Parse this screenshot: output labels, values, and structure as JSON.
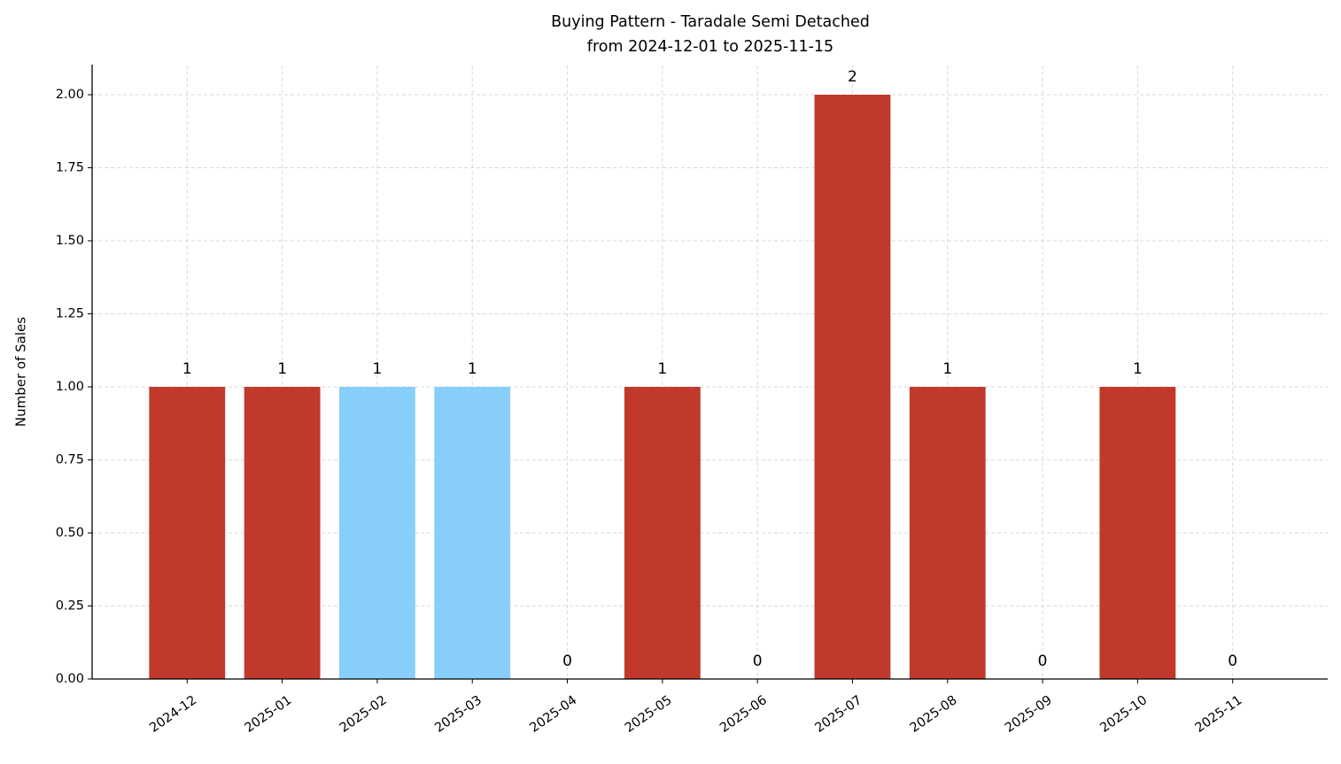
{
  "chart_data": {
    "type": "bar",
    "title": "Buying Pattern - Taradale Semi Detached",
    "subtitle": "from 2024-12-01 to 2025-11-15",
    "y_label": "Number of Sales",
    "categories": [
      "2024-12",
      "2025-01",
      "2025-02",
      "2025-03",
      "2025-04",
      "2025-05",
      "2025-06",
      "2025-07",
      "2025-08",
      "2025-09",
      "2025-10",
      "2025-11"
    ],
    "values": [
      1,
      1,
      1,
      1,
      0,
      1,
      0,
      2,
      1,
      0,
      1,
      0
    ],
    "colors": [
      "#c0392b",
      "#c0392b",
      "#87cefa",
      "#87cefa",
      "#c0392b",
      "#c0392b",
      "#c0392b",
      "#c0392b",
      "#c0392b",
      "#c0392b",
      "#c0392b",
      "#c0392b"
    ],
    "ylim": [
      0,
      2.1
    ],
    "yticks": [
      {
        "value": 0,
        "label": "0.00"
      },
      {
        "value": 0.25,
        "label": "0.25"
      },
      {
        "value": 0.5,
        "label": "0.50"
      },
      {
        "value": 0.75,
        "label": "0.75"
      },
      {
        "value": 1,
        "label": "1.00"
      },
      {
        "value": 1.25,
        "label": "1.25"
      },
      {
        "value": 1.5,
        "label": "1.50"
      },
      {
        "value": 1.75,
        "label": "1.75"
      },
      {
        "value": 2,
        "label": "2.00"
      }
    ],
    "grid": true
  }
}
